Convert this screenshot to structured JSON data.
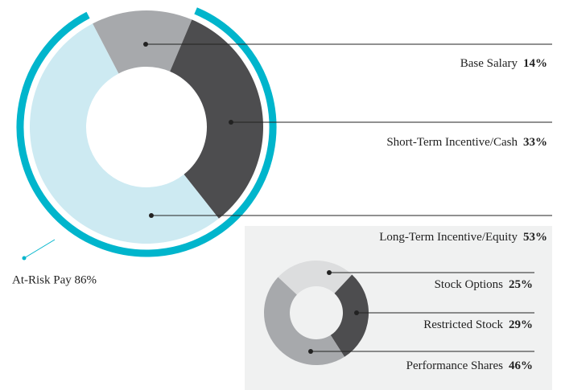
{
  "chart_data": [
    {
      "type": "pie",
      "categories": [
        "Base Salary",
        "Short-Term Incentive/Cash",
        "Long-Term Incentive/Equity"
      ],
      "values": [
        14,
        33,
        53
      ],
      "value_labels": [
        "14%",
        "33%",
        "53%"
      ],
      "colors": [
        "#a7a9ac",
        "#4d4d4f",
        "#cdeaf2"
      ],
      "annotation": {
        "text": "At-Risk Pay 86%",
        "value": 86,
        "color": "#00b5cc"
      }
    },
    {
      "type": "pie",
      "categories": [
        "Stock Options",
        "Restricted Stock",
        "Performance Shares"
      ],
      "values": [
        25,
        29,
        46
      ],
      "value_labels": [
        "25%",
        "29%",
        "46%"
      ],
      "colors": [
        "#dcddde",
        "#4d4d4f",
        "#a7a9ac"
      ]
    }
  ]
}
